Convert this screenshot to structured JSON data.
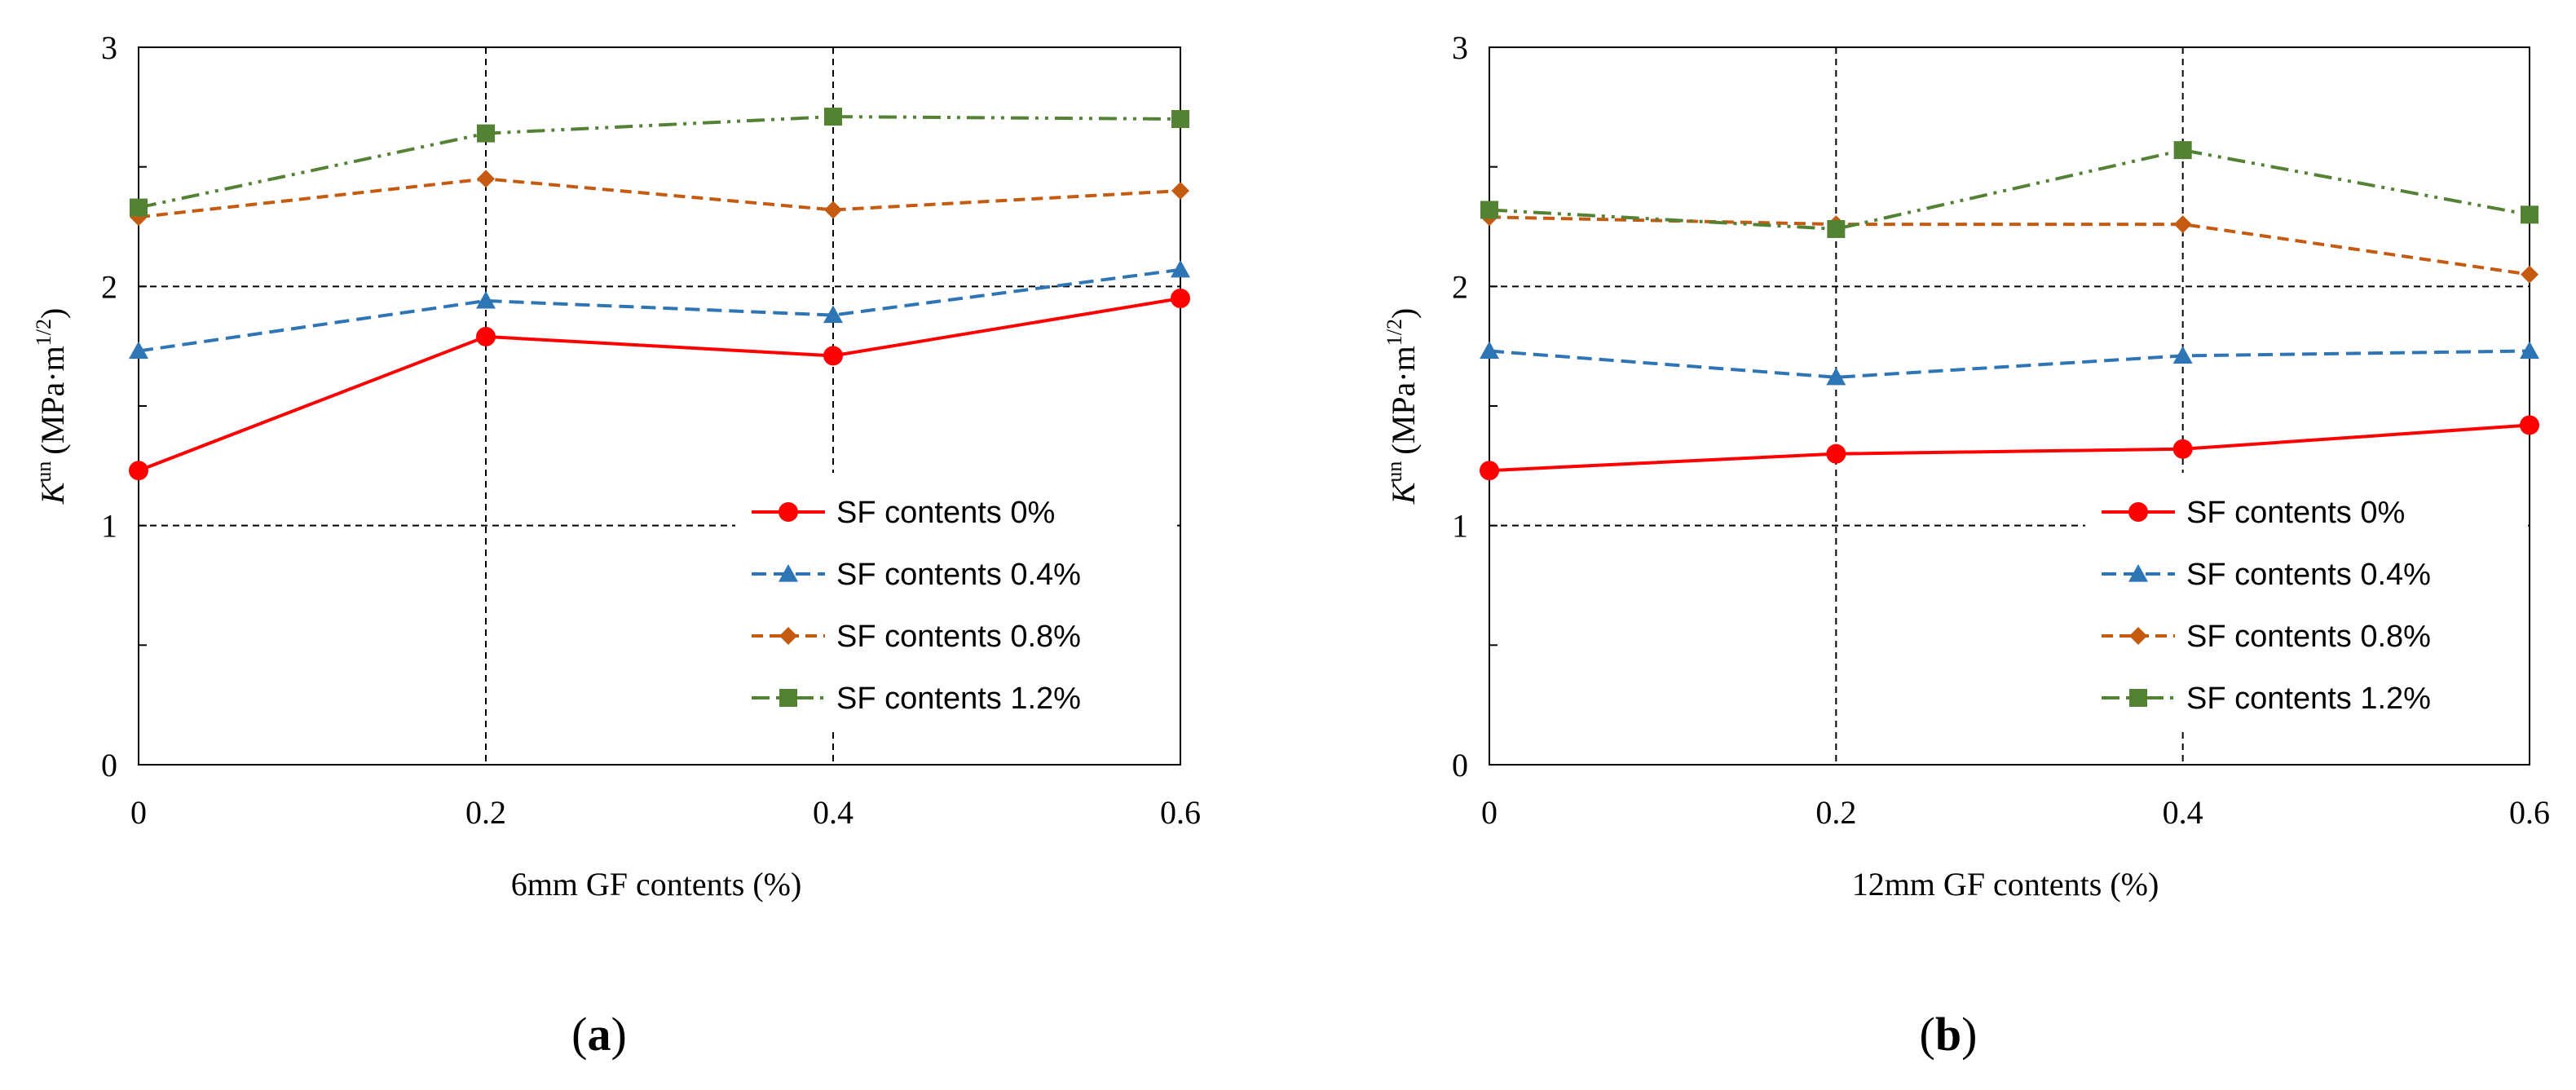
{
  "chart_data": [
    {
      "type": "line",
      "panel_label": "(a)",
      "panel_label_letter": "a",
      "xlabel": "6mm GF contents (%)",
      "ylabel_symbol": "K",
      "ylabel_superscript": "un",
      "ylabel_unit": "(MPa·m",
      "ylabel_unit_exp": "1/2",
      "ylabel_unit_close": ")",
      "x": [
        0,
        0.2,
        0.4,
        0.6
      ],
      "x_tick_labels": [
        "0",
        "0.2",
        "0.4",
        "0.6"
      ],
      "y_tick_labels": [
        "0",
        "1",
        "2",
        "3"
      ],
      "xlim": [
        0,
        0.6
      ],
      "ylim": [
        0,
        3
      ],
      "grid": "dashed",
      "legend_position": "bottom-right",
      "series": [
        {
          "name": "SF contents 0%",
          "values": [
            1.23,
            1.79,
            1.71,
            1.95
          ],
          "color": "#ff0000",
          "marker": "circle",
          "dash": ""
        },
        {
          "name": "SF contents 0.4%",
          "values": [
            1.73,
            1.94,
            1.88,
            2.07
          ],
          "color": "#2e75b6",
          "marker": "triangle",
          "dash": "18,9"
        },
        {
          "name": "SF contents 0.8%",
          "values": [
            2.29,
            2.45,
            2.32,
            2.4
          ],
          "color": "#c55a11",
          "marker": "diamond",
          "dash": "14,8"
        },
        {
          "name": "SF contents 1.2%",
          "values": [
            2.33,
            2.64,
            2.71,
            2.7
          ],
          "color": "#548235",
          "marker": "square",
          "dash": "22,8,4,8,4,8"
        }
      ]
    },
    {
      "type": "line",
      "panel_label": "(b)",
      "panel_label_letter": "b",
      "xlabel": "12mm GF contents (%)",
      "ylabel_symbol": "K",
      "ylabel_superscript": "un",
      "ylabel_unit": "(MPa·m",
      "ylabel_unit_exp": "1/2",
      "ylabel_unit_close": ")",
      "x": [
        0,
        0.2,
        0.4,
        0.6
      ],
      "x_tick_labels": [
        "0",
        "0.2",
        "0.4",
        "0.6"
      ],
      "y_tick_labels": [
        "0",
        "1",
        "2",
        "3"
      ],
      "xlim": [
        0,
        0.6
      ],
      "ylim": [
        0,
        3
      ],
      "grid": "dashed",
      "legend_position": "bottom-right",
      "series": [
        {
          "name": "SF contents 0%",
          "values": [
            1.23,
            1.3,
            1.32,
            1.42
          ],
          "color": "#ff0000",
          "marker": "circle",
          "dash": ""
        },
        {
          "name": "SF contents 0.4%",
          "values": [
            1.73,
            1.62,
            1.71,
            1.73
          ],
          "color": "#2e75b6",
          "marker": "triangle",
          "dash": "18,9"
        },
        {
          "name": "SF contents 0.8%",
          "values": [
            2.29,
            2.26,
            2.26,
            2.05
          ],
          "color": "#c55a11",
          "marker": "diamond",
          "dash": "14,8"
        },
        {
          "name": "SF contents 1.2%",
          "values": [
            2.32,
            2.24,
            2.57,
            2.3
          ],
          "color": "#548235",
          "marker": "square",
          "dash": "22,8,4,8,4,8"
        }
      ]
    }
  ]
}
